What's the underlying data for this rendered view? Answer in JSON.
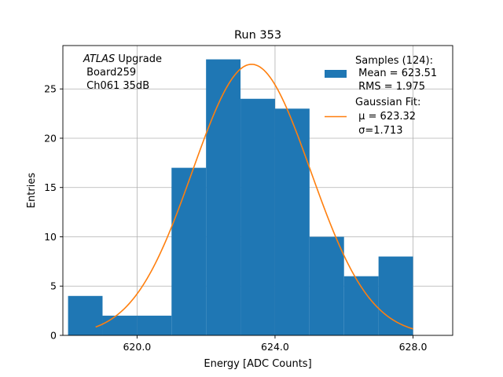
{
  "chart_data": {
    "type": "bar",
    "title": "Run 353",
    "xlabel": "Energy [ADC Counts]",
    "ylabel": "Entries",
    "xlim": [
      617.85,
      629.15
    ],
    "ylim": [
      0,
      29.4
    ],
    "grid": true,
    "x_ticks": [
      620,
      624,
      628
    ],
    "x_tick_labels": [
      "620.0",
      "624.0",
      "628.0"
    ],
    "y_ticks": [
      0,
      5,
      10,
      15,
      20,
      25
    ],
    "y_tick_labels": [
      "0",
      "5",
      "10",
      "15",
      "20",
      "25"
    ],
    "histogram": {
      "name": "Samples",
      "color": "#1f77b4",
      "bin_edges": [
        618,
        619,
        620,
        621,
        622,
        623,
        624,
        625,
        626,
        627,
        628
      ],
      "counts": [
        4,
        2,
        2,
        17,
        28,
        24,
        23,
        10,
        6,
        8
      ]
    },
    "fit": {
      "name": "Gaussian Fit",
      "color": "#ff7f0e",
      "mu": 623.32,
      "sigma": 1.713,
      "amplitude": 27.5,
      "x_range": [
        618.8,
        628.0
      ]
    },
    "annotation": {
      "line1_italic": "ATLAS",
      "line1_rest": " Upgrade",
      "line2": " Board259",
      "line3": " Ch061 35dB"
    },
    "legend": {
      "position": "top-right",
      "samples_lines": [
        "Samples (124):",
        " Mean = 623.51",
        " RMS = 1.975"
      ],
      "fit_lines": [
        "Gaussian Fit:",
        " μ = 623.32",
        " σ=1.713"
      ]
    }
  }
}
